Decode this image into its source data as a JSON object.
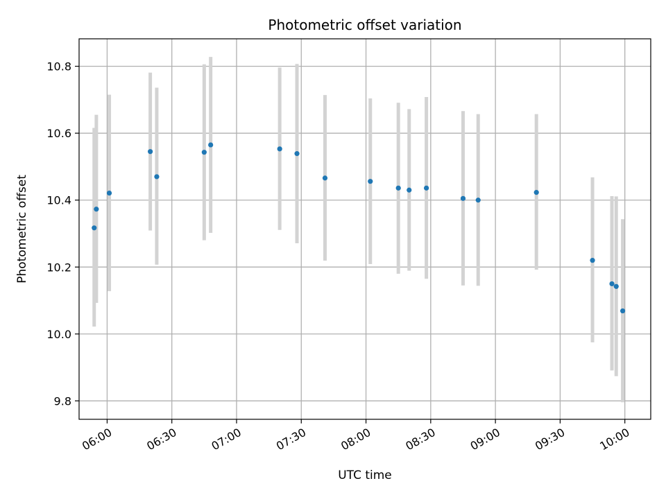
{
  "chart_data": {
    "type": "scatter",
    "title": "Photometric offset variation",
    "xlabel": "UTC time",
    "ylabel": "Photometric offset",
    "x_tick_labels": [
      "06:00",
      "06:30",
      "07:00",
      "07:30",
      "08:00",
      "08:30",
      "09:00",
      "09:30",
      "10:00"
    ],
    "y_tick_labels": [
      "9.8",
      "10.0",
      "10.2",
      "10.4",
      "10.6",
      "10.8"
    ],
    "xlim": [
      "05:47",
      "10:12"
    ],
    "ylim": [
      9.745,
      10.882
    ],
    "grid": true,
    "point_color": "#1f77b4",
    "errorbar_color": "#d3d3d3",
    "grid_color": "#b0b0b0",
    "points": [
      {
        "x": "05:54",
        "y": 10.317,
        "ylow": 10.022,
        "yhigh": 10.616
      },
      {
        "x": "05:55",
        "y": 10.373,
        "ylow": 10.093,
        "yhigh": 10.655
      },
      {
        "x": "06:01",
        "y": 10.421,
        "ylow": 10.128,
        "yhigh": 10.715
      },
      {
        "x": "06:20",
        "y": 10.545,
        "ylow": 10.309,
        "yhigh": 10.781
      },
      {
        "x": "06:23",
        "y": 10.47,
        "ylow": 10.207,
        "yhigh": 10.736
      },
      {
        "x": "06:45",
        "y": 10.543,
        "ylow": 10.28,
        "yhigh": 10.806
      },
      {
        "x": "06:48",
        "y": 10.565,
        "ylow": 10.302,
        "yhigh": 10.828
      },
      {
        "x": "07:20",
        "y": 10.553,
        "ylow": 10.311,
        "yhigh": 10.796
      },
      {
        "x": "07:28",
        "y": 10.539,
        "ylow": 10.271,
        "yhigh": 10.807
      },
      {
        "x": "07:41",
        "y": 10.466,
        "ylow": 10.219,
        "yhigh": 10.714
      },
      {
        "x": "08:02",
        "y": 10.456,
        "ylow": 10.209,
        "yhigh": 10.704
      },
      {
        "x": "08:15",
        "y": 10.436,
        "ylow": 10.18,
        "yhigh": 10.691
      },
      {
        "x": "08:20",
        "y": 10.43,
        "ylow": 10.189,
        "yhigh": 10.672
      },
      {
        "x": "08:28",
        "y": 10.436,
        "ylow": 10.165,
        "yhigh": 10.708
      },
      {
        "x": "08:45",
        "y": 10.405,
        "ylow": 10.145,
        "yhigh": 10.666
      },
      {
        "x": "08:52",
        "y": 10.4,
        "ylow": 10.144,
        "yhigh": 10.657
      },
      {
        "x": "09:19",
        "y": 10.423,
        "ylow": 10.192,
        "yhigh": 10.657
      },
      {
        "x": "09:45",
        "y": 10.22,
        "ylow": 9.975,
        "yhigh": 10.468
      },
      {
        "x": "09:54",
        "y": 10.15,
        "ylow": 9.891,
        "yhigh": 10.412
      },
      {
        "x": "09:56",
        "y": 10.142,
        "ylow": 9.874,
        "yhigh": 10.411
      },
      {
        "x": "09:59",
        "y": 10.069,
        "ylow": 9.796,
        "yhigh": 10.343
      }
    ]
  }
}
